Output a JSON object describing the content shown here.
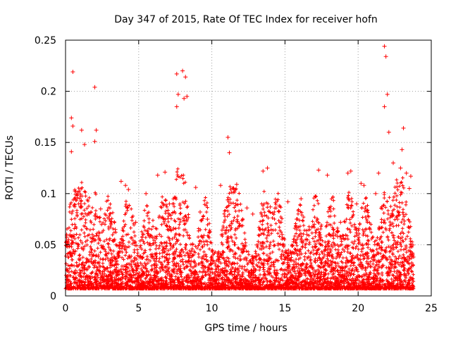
{
  "chart_data": {
    "type": "scatter",
    "title": "Day 347 of 2015, Rate Of TEC Index for receiver hofn",
    "xlabel": "GPS time / hours",
    "ylabel": "ROTI / TECUs",
    "xlim": [
      0,
      25
    ],
    "ylim": [
      0,
      0.25
    ],
    "xticks": [
      0,
      5,
      10,
      15,
      20,
      25
    ],
    "yticks": [
      0,
      0.05,
      0.1,
      0.15,
      0.2,
      0.25
    ],
    "xtick_labels": [
      "0",
      "5",
      "10",
      "15",
      "20",
      "25"
    ],
    "ytick_labels": [
      "0",
      "0.05",
      "0.1",
      "0.15",
      "0.2",
      "0.25"
    ],
    "grid": true,
    "marker": "+",
    "color": "#ff0000",
    "data_x_range": [
      0,
      23.8
    ],
    "series": [
      {
        "x": [
          0.5,
          0.4,
          2.0,
          7.6,
          8.0,
          8.2,
          7.7,
          8.1,
          21.8,
          21.9,
          22.0,
          21.8,
          22.1,
          7.6,
          8.3,
          2.1,
          2.0,
          0.5,
          0.4,
          1.1,
          1.3,
          11.1,
          11.2,
          23.1,
          23.0,
          22.9,
          3.8,
          4.1,
          4.3,
          5.5,
          6.3,
          6.8,
          8.9,
          10.6,
          11.7,
          13.5,
          13.8,
          14.6,
          15.2,
          16.1,
          17.3,
          17.9,
          19.3,
          19.5,
          20.2,
          20.4,
          21.2,
          23.3,
          23.6,
          0.9,
          1.6,
          2.4,
          3.0,
          9.2,
          9.7,
          12.4,
          12.8,
          14.0,
          15.8,
          16.5,
          18.3,
          18.8,
          19.9,
          21.4,
          22.4,
          23.5,
          0.2,
          3.4,
          4.8,
          7.1,
          9.5,
          12.0,
          14.8,
          17.0,
          18.6,
          20.8,
          22.7
        ],
        "y": [
          0.219,
          0.174,
          0.204,
          0.217,
          0.22,
          0.214,
          0.197,
          0.193,
          0.244,
          0.234,
          0.197,
          0.185,
          0.16,
          0.185,
          0.195,
          0.162,
          0.151,
          0.166,
          0.141,
          0.162,
          0.148,
          0.155,
          0.14,
          0.164,
          0.143,
          0.125,
          0.112,
          0.108,
          0.104,
          0.1,
          0.118,
          0.121,
          0.106,
          0.108,
          0.109,
          0.122,
          0.125,
          0.088,
          0.092,
          0.095,
          0.123,
          0.118,
          0.12,
          0.122,
          0.11,
          0.108,
          0.1,
          0.12,
          0.117,
          0.09,
          0.08,
          0.085,
          0.075,
          0.082,
          0.075,
          0.086,
          0.08,
          0.087,
          0.075,
          0.06,
          0.065,
          0.072,
          0.09,
          0.12,
          0.13,
          0.105,
          0.055,
          0.065,
          0.072,
          0.09,
          0.05,
          0.045,
          0.06,
          0.07,
          0.058,
          0.065,
          0.075
        ]
      }
    ]
  }
}
